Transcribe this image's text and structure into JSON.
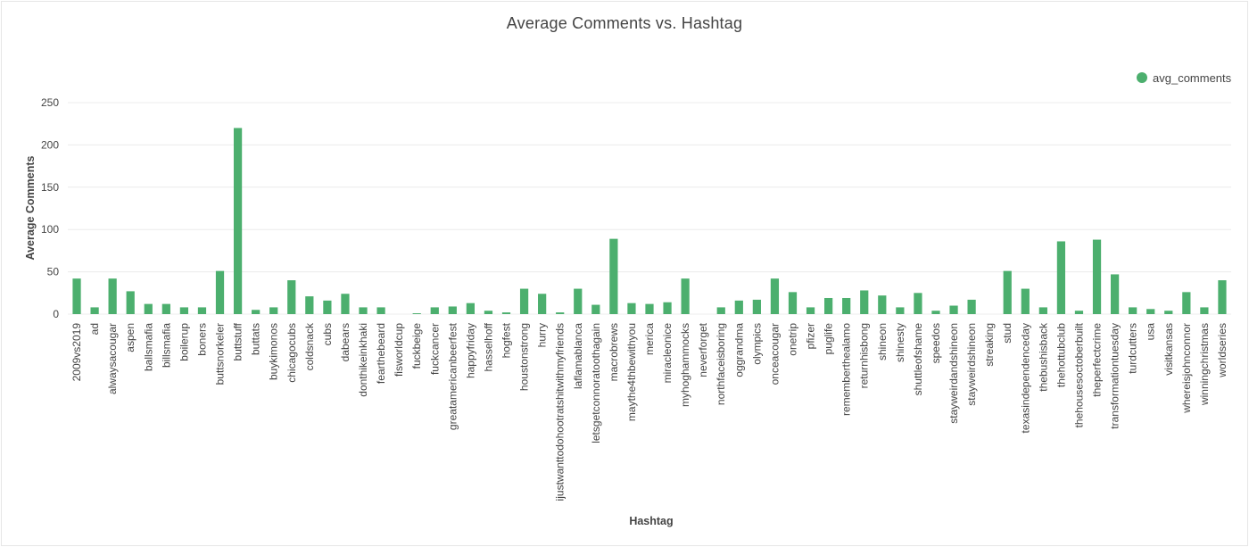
{
  "chart_data": {
    "type": "bar",
    "title": "Average Comments vs. Hashtag",
    "xlabel": "Hashtag",
    "ylabel": "Average Comments",
    "ylim": [
      0,
      250
    ],
    "yticks": [
      0,
      50,
      100,
      150,
      200,
      250
    ],
    "grid": true,
    "legend_position": "top-right",
    "categories": [
      "2009vs2019",
      "ad",
      "alwaysacougar",
      "aspen",
      "ballsmafia",
      "billsmafia",
      "boilerup",
      "boners",
      "buttsnorkeler",
      "buttstuff",
      "buttats",
      "buykimonos",
      "chicagocubs",
      "coldsnack",
      "cubs",
      "dabears",
      "donthikeinkhaki",
      "fearthebeard",
      "fisworldcup",
      "fuckbeige",
      "fuckcancer",
      "greatamericanbeerfest",
      "happyfriday",
      "hasselhoff",
      "hogfest",
      "houstonstrong",
      "hurry",
      "ijustwanttodohootratshitwithmyfriends",
      "laflamablanca",
      "letsgetconnoratoothagain",
      "macrobrews",
      "maythe4thbewithyou",
      "merica",
      "miracleonice",
      "myhoghammocks",
      "neverforget",
      "northfaceisboring",
      "oggrandma",
      "olympics",
      "onceacougar",
      "onetrip",
      "pfizer",
      "puglife",
      "rememberthealamo",
      "returnhisbong",
      "shineon",
      "shinesty",
      "shuttleofshame",
      "speedos",
      "stayweirdandshineon",
      "stayweirdshineon",
      "streaking",
      "stud",
      "texasindependenceday",
      "thebushisback",
      "thehottubclub",
      "thehousesoctoberbuilt",
      "theperfectcrime",
      "transformationtuesday",
      "turdcutters",
      "usa",
      "visitkansas",
      "whereisjohnconnor",
      "winningchristmas",
      "worldseries"
    ],
    "series": [
      {
        "name": "avg_comments",
        "color": "#4caf6e",
        "values": [
          42,
          8,
          42,
          27,
          12,
          12,
          8,
          8,
          51,
          220,
          5,
          8,
          40,
          21,
          16,
          24,
          8,
          8,
          0,
          1,
          8,
          9,
          13,
          4,
          2,
          30,
          24,
          2,
          30,
          11,
          89,
          13,
          12,
          14,
          42,
          0,
          8,
          16,
          17,
          42,
          26,
          8,
          19,
          19,
          28,
          22,
          8,
          25,
          4,
          10,
          17,
          0,
          51,
          30,
          8,
          86,
          4,
          88,
          47,
          8,
          6,
          4,
          26,
          8,
          40
        ]
      }
    ]
  }
}
